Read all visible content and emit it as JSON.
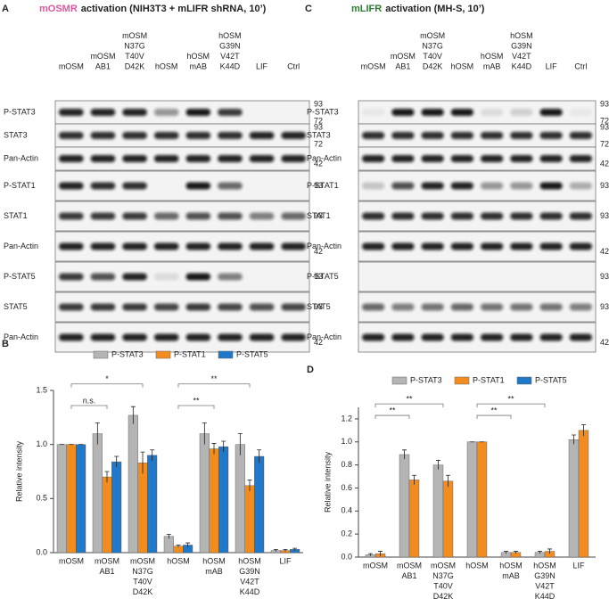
{
  "panels": [
    {
      "letter": "A",
      "title_highlight": "mOSMR",
      "title_rest": "activation (NIH3T3 + mLIFR shRNA, 10’)",
      "highlight_color": "#e0589b",
      "lanes": [
        [
          "mOSM"
        ],
        [
          "mOSM",
          "AB1"
        ],
        [
          "mOSM",
          "N37G",
          "T40V",
          "D42K"
        ],
        [
          "hOSM"
        ],
        [
          "hOSM",
          "mAB"
        ],
        [
          "hOSM",
          "G39N",
          "V42T",
          "K44D"
        ],
        [
          "LIF"
        ],
        [
          "Ctrl"
        ]
      ],
      "rows": [
        {
          "label": "P-STAT3",
          "markers": [
            93,
            72
          ]
        },
        {
          "label": "STAT3",
          "markers": [
            93,
            72
          ]
        },
        {
          "label": "Pan-Actin",
          "markers": [
            42
          ]
        },
        {
          "label": "P-STAT1",
          "markers": [
            93
          ]
        },
        {
          "label": "STAT1",
          "markers": [
            93
          ]
        },
        {
          "label": "Pan-Actin",
          "markers": [
            42
          ]
        },
        {
          "label": "P-STAT5",
          "markers": [
            93
          ]
        },
        {
          "label": "STAT5",
          "markers": [
            93
          ]
        },
        {
          "label": "Pan-Actin",
          "markers": [
            42
          ]
        }
      ]
    },
    {
      "letter": "C",
      "title_highlight": "mLIFR",
      "title_rest": "activation (MH-S, 10’)",
      "highlight_color": "#2e7d32",
      "lanes": [
        [
          "mOSM"
        ],
        [
          "mOSM",
          "AB1"
        ],
        [
          "mOSM",
          "N37G",
          "T40V",
          "D42K"
        ],
        [
          "hOSM"
        ],
        [
          "hOSM",
          "mAB"
        ],
        [
          "hOSM",
          "G39N",
          "V42T",
          "K44D"
        ],
        [
          "LIF"
        ],
        [
          "Ctrl"
        ]
      ],
      "rows": [
        {
          "label": "P-STAT3",
          "markers": [
            93,
            72
          ]
        },
        {
          "label": "STAT3",
          "markers": [
            93,
            72
          ]
        },
        {
          "label": "Pan-Actin",
          "markers": [
            42
          ]
        },
        {
          "label": "P-STAT1",
          "markers": [
            93
          ]
        },
        {
          "label": "STAT1",
          "markers": [
            93
          ]
        },
        {
          "label": "Pan-Actin",
          "markers": [
            42
          ]
        },
        {
          "label": "P-STAT5",
          "markers": [
            93
          ]
        },
        {
          "label": "STAT5",
          "markers": [
            93
          ]
        },
        {
          "label": "Pan-Actin",
          "markers": [
            42
          ]
        }
      ]
    }
  ],
  "chart_data": [
    {
      "type": "bar",
      "letter": "B",
      "ylabel": "Relative intensity",
      "categories": [
        [
          "mOSM"
        ],
        [
          "mOSM",
          "AB1"
        ],
        [
          "mOSM",
          "N37G",
          "T40V",
          "D42K"
        ],
        [
          "hOSM"
        ],
        [
          "hOSM",
          "mAB"
        ],
        [
          "hOSM",
          "G39N",
          "V42T",
          "K44D"
        ],
        [
          "LIF"
        ]
      ],
      "series": [
        {
          "name": "P-STAT3",
          "color": "#b4b4b4",
          "values": [
            1.0,
            1.1,
            1.27,
            0.15,
            1.1,
            1.0,
            0.02
          ],
          "errors": [
            0.0,
            0.1,
            0.08,
            0.02,
            0.1,
            0.1,
            0.01
          ]
        },
        {
          "name": "P-STAT1",
          "color": "#f28c1e",
          "values": [
            1.0,
            0.7,
            0.83,
            0.06,
            0.96,
            0.62,
            0.02
          ],
          "errors": [
            0.0,
            0.05,
            0.1,
            0.01,
            0.05,
            0.05,
            0.01
          ]
        },
        {
          "name": "P-STAT5",
          "color": "#1f78c8",
          "values": [
            1.0,
            0.84,
            0.9,
            0.07,
            0.98,
            0.89,
            0.03
          ],
          "errors": [
            0.0,
            0.05,
            0.05,
            0.02,
            0.05,
            0.06,
            0.01
          ]
        }
      ],
      "ylim": [
        0,
        1.5
      ],
      "yticks": [
        {
          "value": 0,
          "label": "0.0"
        },
        {
          "value": 0.5,
          "label": "0.5"
        },
        {
          "value": 1,
          "label": "1.0"
        },
        {
          "value": 1.5,
          "label": "1.5"
        }
      ],
      "annotations": [
        "n.s.",
        "*",
        "**",
        "**"
      ]
    },
    {
      "type": "bar",
      "letter": "D",
      "ylabel": "Relative intensity",
      "categories": [
        [
          "mOSM"
        ],
        [
          "mOSM",
          "AB1"
        ],
        [
          "mOSM",
          "N37G",
          "T40V",
          "D42K"
        ],
        [
          "hOSM"
        ],
        [
          "hOSM",
          "mAB"
        ],
        [
          "hOSM",
          "G39N",
          "V42T",
          "K44D"
        ],
        [
          "LIF"
        ]
      ],
      "series": [
        {
          "name": "P-STAT3",
          "color": "#b4b4b4",
          "values": [
            0.02,
            0.89,
            0.8,
            1.0,
            0.04,
            0.04,
            1.02
          ],
          "errors": [
            0.01,
            0.04,
            0.04,
            0.0,
            0.01,
            0.01,
            0.04
          ]
        },
        {
          "name": "P-STAT1",
          "color": "#f28c1e",
          "values": [
            0.03,
            0.67,
            0.66,
            1.0,
            0.04,
            0.05,
            1.1
          ],
          "errors": [
            0.02,
            0.04,
            0.05,
            0.0,
            0.01,
            0.02,
            0.05
          ]
        },
        {
          "name": "P-STAT5",
          "color": "#1f78c8",
          "values": [
            null,
            null,
            null,
            null,
            null,
            null,
            null
          ],
          "errors": [
            null,
            null,
            null,
            null,
            null,
            null,
            null
          ]
        }
      ],
      "ylim": [
        0,
        1.3
      ],
      "yticks": [
        {
          "value": 0,
          "label": "0.0"
        },
        {
          "value": 0.2,
          "label": "0.2"
        },
        {
          "value": 0.4,
          "label": "0.4"
        },
        {
          "value": 0.6,
          "label": "0.6"
        },
        {
          "value": 0.8,
          "label": "0.8"
        },
        {
          "value": 1,
          "label": "1.0"
        },
        {
          "value": 1.2,
          "label": "1.2"
        }
      ],
      "annotations": [
        "**",
        "**",
        "**",
        "**"
      ]
    }
  ]
}
